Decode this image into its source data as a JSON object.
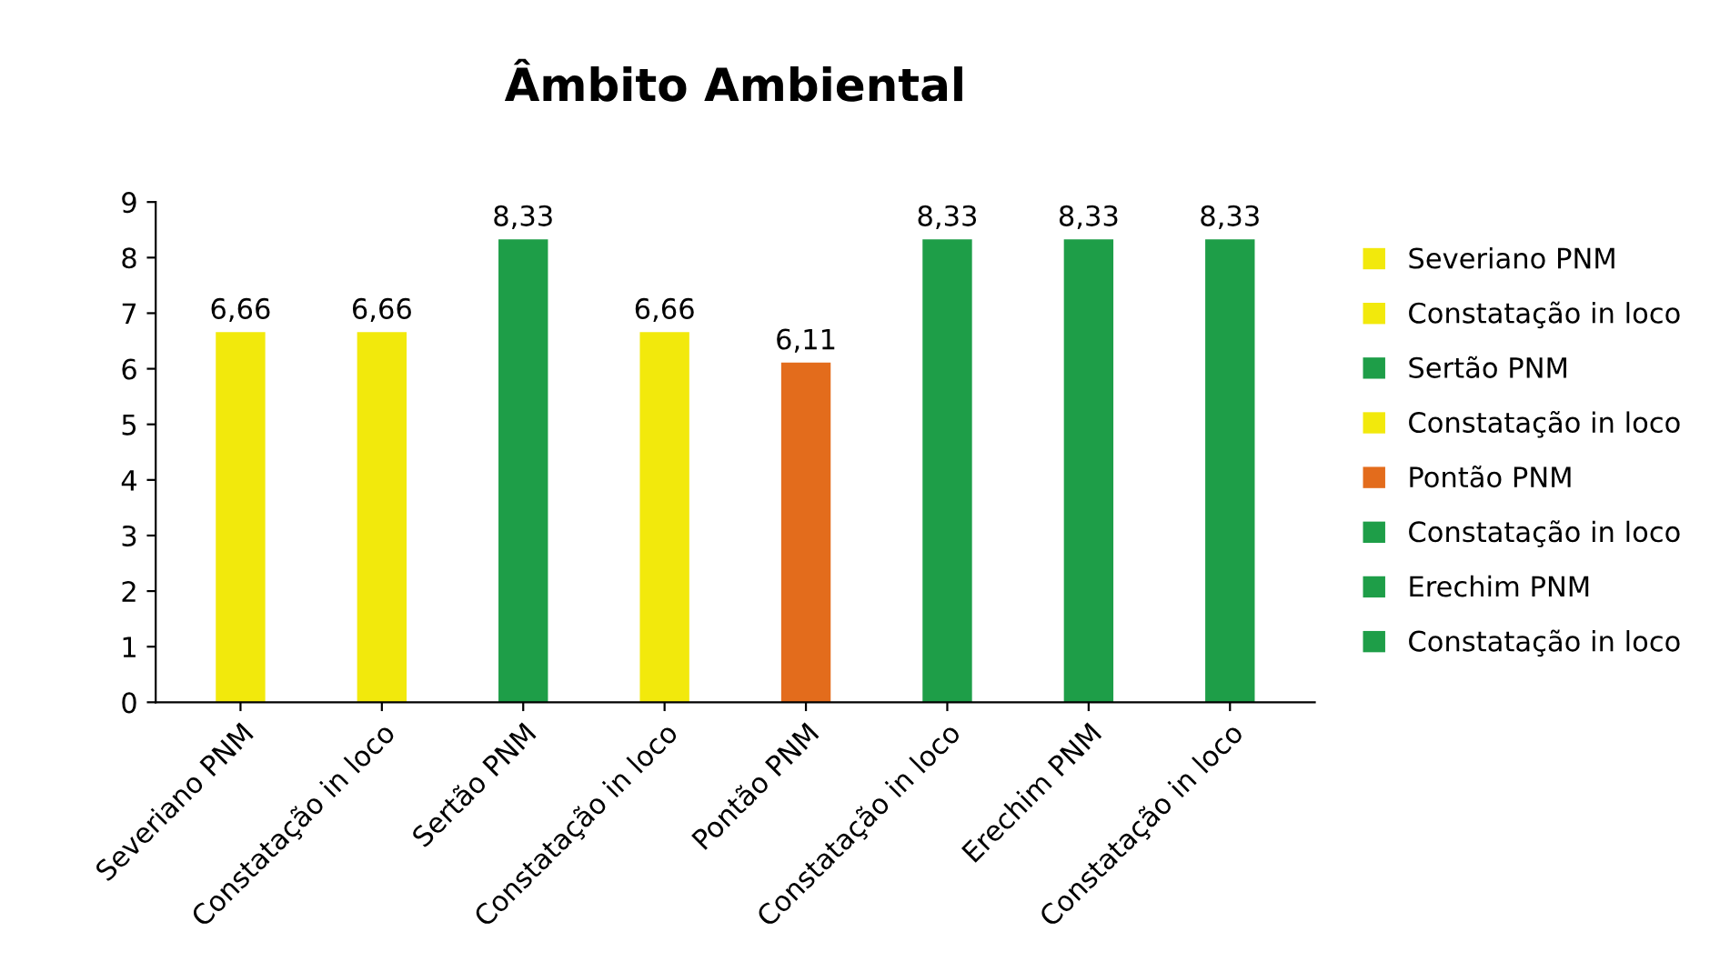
{
  "chart_data": {
    "type": "bar",
    "title": "Âmbito Ambiental",
    "categories": [
      "Severiano PNM",
      "Constatação in loco",
      "Sertão PNM",
      "Constatação in loco",
      "Pontão PNM",
      "Constatação in loco",
      "Erechim PNM",
      "Constatação in loco"
    ],
    "series": [
      {
        "name": "Severiano PNM",
        "color": "#f2e90c",
        "values": [
          6.66,
          null,
          null,
          null,
          null,
          null,
          null,
          null
        ],
        "value_labels": [
          "6,66",
          null,
          null,
          null,
          null,
          null,
          null,
          null
        ]
      },
      {
        "name": "Constatação in loco",
        "color": "#f2e90c",
        "values": [
          null,
          6.66,
          null,
          null,
          null,
          null,
          null,
          null
        ],
        "value_labels": [
          null,
          "6,66",
          null,
          null,
          null,
          null,
          null,
          null
        ]
      },
      {
        "name": "Sertão PNM",
        "color": "#1e9e48",
        "values": [
          null,
          null,
          8.33,
          null,
          null,
          null,
          null,
          null
        ],
        "value_labels": [
          null,
          null,
          "8,33",
          null,
          null,
          null,
          null,
          null
        ]
      },
      {
        "name": "Constatação in loco",
        "color": "#f2e90c",
        "values": [
          null,
          null,
          null,
          6.66,
          null,
          null,
          null,
          null
        ],
        "value_labels": [
          null,
          null,
          null,
          "6,66",
          null,
          null,
          null,
          null
        ]
      },
      {
        "name": "Pontão PNM",
        "color": "#e36c1c",
        "values": [
          null,
          null,
          null,
          null,
          6.11,
          null,
          null,
          null
        ],
        "value_labels": [
          null,
          null,
          null,
          null,
          "6,11",
          null,
          null,
          null
        ]
      },
      {
        "name": "Constatação in loco",
        "color": "#1e9e48",
        "values": [
          null,
          null,
          null,
          null,
          null,
          8.33,
          null,
          null
        ],
        "value_labels": [
          null,
          null,
          null,
          null,
          null,
          "8,33",
          null,
          null
        ]
      },
      {
        "name": "Erechim PNM",
        "color": "#1e9e48",
        "values": [
          null,
          null,
          null,
          null,
          null,
          null,
          8.33,
          null
        ],
        "value_labels": [
          null,
          null,
          null,
          null,
          null,
          null,
          "8,33",
          null
        ]
      },
      {
        "name": "Constatação in loco",
        "color": "#1e9e48",
        "values": [
          null,
          null,
          null,
          null,
          null,
          null,
          null,
          8.33
        ],
        "value_labels": [
          null,
          null,
          null,
          null,
          null,
          null,
          null,
          "8,33"
        ]
      }
    ],
    "ylim": [
      0,
      9
    ],
    "yticks": [
      0,
      1,
      2,
      3,
      4,
      5,
      6,
      7,
      8,
      9
    ],
    "grid": false,
    "legend": "right"
  }
}
